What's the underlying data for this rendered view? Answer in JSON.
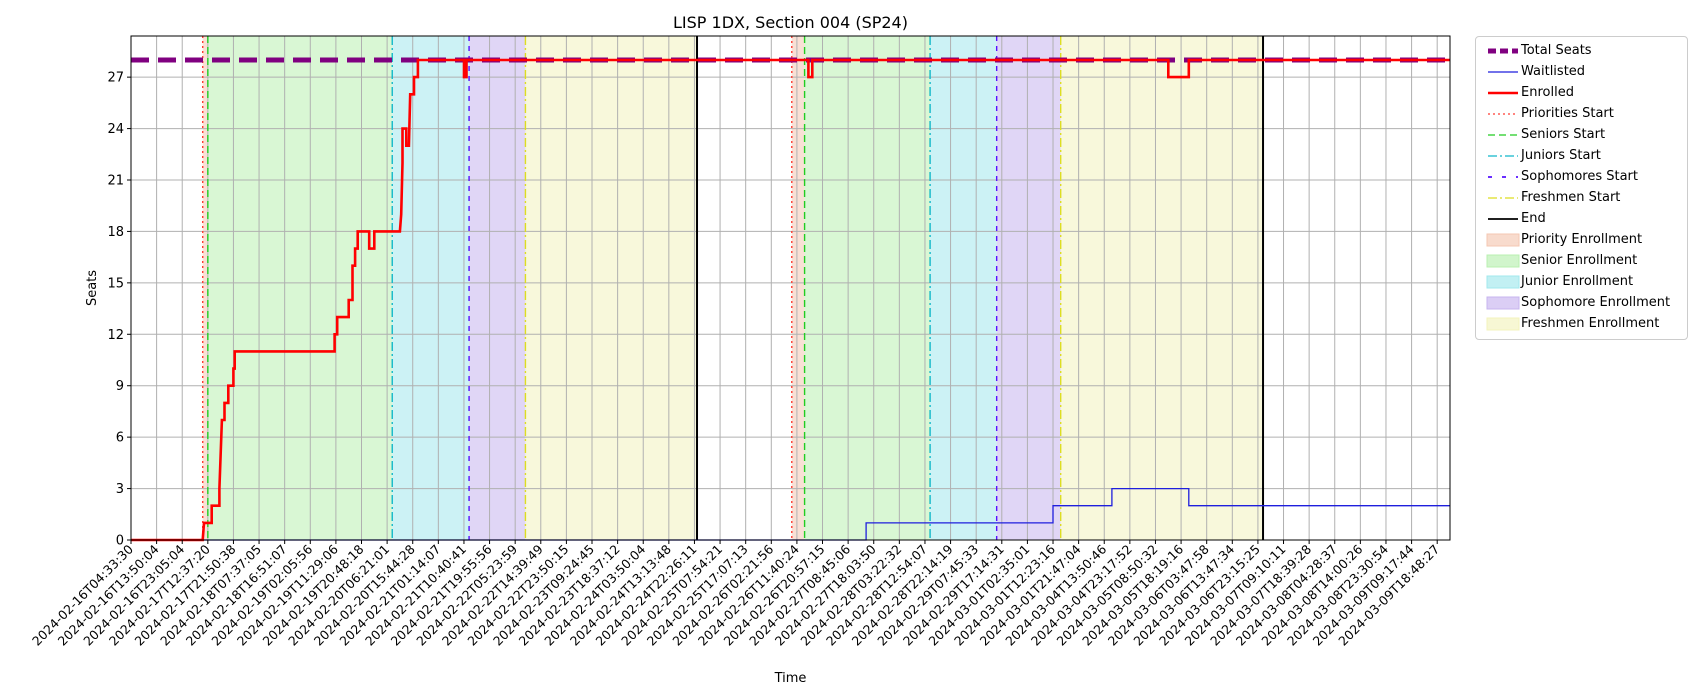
{
  "chart_data": {
    "type": "line",
    "title": "LISP 1DX, Section 004 (SP24)",
    "xlabel": "Time",
    "ylabel": "Seats",
    "ylim": [
      0,
      29.4
    ],
    "grid": true,
    "legend_position": "outside-right-top",
    "x_ticks": [
      "2024-02-16T04:33:30",
      "2024-02-16T13:50:04",
      "2024-02-16T23:05:04",
      "2024-02-17T12:37:20",
      "2024-02-17T21:50:38",
      "2024-02-18T07:37:05",
      "2024-02-18T16:51:07",
      "2024-02-19T02:05:56",
      "2024-02-19T11:29:06",
      "2024-02-19T20:48:18",
      "2024-02-20T06:21:01",
      "2024-02-20T15:44:28",
      "2024-02-21T01:14:07",
      "2024-02-21T10:40:41",
      "2024-02-21T19:55:56",
      "2024-02-22T05:23:59",
      "2024-02-22T14:39:49",
      "2024-02-22T23:50:15",
      "2024-02-23T09:24:45",
      "2024-02-23T18:37:12",
      "2024-02-24T03:50:04",
      "2024-02-24T13:13:48",
      "2024-02-24T22:26:11",
      "2024-02-25T07:54:21",
      "2024-02-25T17:07:13",
      "2024-02-26T02:21:56",
      "2024-02-26T11:40:24",
      "2024-02-26T20:57:15",
      "2024-02-27T08:45:06",
      "2024-02-27T18:03:50",
      "2024-02-28T03:22:32",
      "2024-02-28T12:54:07",
      "2024-02-28T22:14:19",
      "2024-02-29T07:45:33",
      "2024-02-29T17:14:31",
      "2024-03-01T02:35:01",
      "2024-03-01T12:23:16",
      "2024-03-01T21:47:04",
      "2024-03-04T13:50:46",
      "2024-03-04T23:17:52",
      "2024-03-05T08:50:32",
      "2024-03-05T18:19:16",
      "2024-03-06T03:47:58",
      "2024-03-06T13:47:34",
      "2024-03-06T23:15:25",
      "2024-03-07T09:10:11",
      "2024-03-07T18:39:28",
      "2024-03-08T04:28:37",
      "2024-03-08T14:00:26",
      "2024-03-08T23:30:54",
      "2024-03-09T09:17:44",
      "2024-03-09T18:48:27"
    ],
    "y_ticks": [
      0,
      3,
      6,
      9,
      12,
      15,
      18,
      21,
      24,
      27
    ],
    "x_index_range": [
      0,
      51.5
    ],
    "regions": [
      {
        "name": "Priority Enrollment",
        "start": 2.8,
        "end": 3.0,
        "color": "#f4c7b2"
      },
      {
        "name": "Senior Enrollment",
        "start": 3.0,
        "end": 10.2,
        "color": "#b9f0b0"
      },
      {
        "name": "Junior Enrollment",
        "start": 10.2,
        "end": 13.2,
        "color": "#a2e8ec"
      },
      {
        "name": "Sophomore Enrollment",
        "start": 13.2,
        "end": 15.4,
        "color": "#c7b4ef"
      },
      {
        "name": "Freshmen Enrollment",
        "start": 15.4,
        "end": 22.1,
        "color": "#f3f3bd"
      },
      {
        "name": "Priority Enrollment",
        "start": 25.8,
        "end": 26.3,
        "color": "#f4c7b2"
      },
      {
        "name": "Senior Enrollment",
        "start": 26.3,
        "end": 31.2,
        "color": "#b9f0b0"
      },
      {
        "name": "Junior Enrollment",
        "start": 31.2,
        "end": 33.8,
        "color": "#a2e8ec"
      },
      {
        "name": "Sophomore Enrollment",
        "start": 33.8,
        "end": 36.3,
        "color": "#c7b4ef"
      },
      {
        "name": "Freshmen Enrollment",
        "start": 36.3,
        "end": 44.2,
        "color": "#f3f3bd"
      }
    ],
    "markers": [
      {
        "name": "Priorities Start",
        "x": 2.8,
        "color": "#ff3b30",
        "dash": "2,3"
      },
      {
        "name": "Seniors Start",
        "x": 3.0,
        "color": "#22cc22",
        "dash": "7,4"
      },
      {
        "name": "Juniors Start",
        "x": 10.2,
        "color": "#11b8c9",
        "dash": "9,3,2,3"
      },
      {
        "name": "Sophomores Start",
        "x": 13.2,
        "color": "#5511ff",
        "dash": "5,5"
      },
      {
        "name": "Freshmen Start",
        "x": 15.4,
        "color": "#dddd22",
        "dash": "9,3,2,3"
      },
      {
        "name": "End",
        "x": 22.1,
        "color": "#000000",
        "dash": ""
      },
      {
        "name": "Priorities Start",
        "x": 25.8,
        "color": "#ff3b30",
        "dash": "2,3"
      },
      {
        "name": "Seniors Start",
        "x": 26.3,
        "color": "#22cc22",
        "dash": "7,4"
      },
      {
        "name": "Juniors Start",
        "x": 31.2,
        "color": "#11b8c9",
        "dash": "9,3,2,3"
      },
      {
        "name": "Sophomores Start",
        "x": 33.8,
        "color": "#5511ff",
        "dash": "5,5"
      },
      {
        "name": "Freshmen Start",
        "x": 36.3,
        "color": "#dddd22",
        "dash": "9,3,2,3"
      },
      {
        "name": "End",
        "x": 44.2,
        "color": "#000000",
        "dash": ""
      }
    ],
    "series": [
      {
        "name": "Total Seats",
        "color": "#800080",
        "style": "dashed-thick",
        "x": [
          0,
          51.5
        ],
        "y": [
          28,
          28
        ]
      },
      {
        "name": "Waitlisted",
        "color": "#1f1fdd",
        "style": "solid-thin",
        "x": [
          0,
          28.7,
          28.7,
          36.0,
          36.0,
          38.3,
          38.3,
          41.3,
          41.3,
          51.5
        ],
        "y": [
          0,
          0,
          1,
          1,
          2,
          2,
          3,
          3,
          2,
          2
        ]
      },
      {
        "name": "Enrolled",
        "color": "#ff0000",
        "style": "solid-thick",
        "x": [
          0,
          2.8,
          2.85,
          3.15,
          3.15,
          3.45,
          3.45,
          3.55,
          3.6,
          3.65,
          3.65,
          3.8,
          3.8,
          4.0,
          4.0,
          4.05,
          4.05,
          7.95,
          7.95,
          8.05,
          8.05,
          8.5,
          8.5,
          8.65,
          8.65,
          8.75,
          8.75,
          8.85,
          8.85,
          9.3,
          9.3,
          9.5,
          9.5,
          10.5,
          10.55,
          10.6,
          10.6,
          10.75,
          10.75,
          10.85,
          10.9,
          11.05,
          11.05,
          11.2,
          11.2,
          11.35,
          11.35,
          13.0,
          13.0,
          13.1,
          13.1,
          25.8,
          25.85,
          26.45,
          26.45,
          26.6,
          26.6,
          40.5,
          40.5,
          41.3,
          41.3,
          51.5
        ],
        "y": [
          0,
          0,
          1,
          1,
          2,
          2,
          3,
          7,
          7,
          7,
          8,
          8,
          9,
          9,
          10,
          10,
          11,
          11,
          12,
          12,
          13,
          13,
          14,
          14,
          16,
          16,
          17,
          17,
          18,
          18,
          17,
          17,
          18,
          18,
          19,
          22,
          24,
          24,
          23,
          23,
          26,
          26,
          27,
          27,
          28,
          28,
          28,
          28,
          27,
          27,
          28,
          28,
          28,
          28,
          27,
          27,
          28,
          28,
          27,
          27,
          28,
          28
        ]
      }
    ]
  },
  "legend": {
    "items": [
      {
        "label": "Total Seats",
        "kind": "line",
        "color": "#800080",
        "dash": "8,4",
        "width": 5
      },
      {
        "label": "Waitlisted",
        "kind": "line",
        "color": "#1f1fdd",
        "dash": "",
        "width": 1.3
      },
      {
        "label": "Enrolled",
        "kind": "line",
        "color": "#ff0000",
        "dash": "",
        "width": 2.5
      },
      {
        "label": "Priorities Start",
        "kind": "line",
        "color": "#ff3b30",
        "dash": "2,3",
        "width": 1.3
      },
      {
        "label": "Seniors Start",
        "kind": "line",
        "color": "#22cc22",
        "dash": "7,4",
        "width": 1.3
      },
      {
        "label": "Juniors Start",
        "kind": "line",
        "color": "#11b8c9",
        "dash": "9,3,2,3",
        "width": 1.3
      },
      {
        "label": "Sophomores Start",
        "kind": "line",
        "color": "#5511ff",
        "dash": "4,10",
        "width": 1.8
      },
      {
        "label": "Freshmen Start",
        "kind": "line",
        "color": "#dddd22",
        "dash": "9,3,2,3",
        "width": 1.3
      },
      {
        "label": "End",
        "kind": "line",
        "color": "#000000",
        "dash": "",
        "width": 1.8
      },
      {
        "label": "Priority Enrollment",
        "kind": "patch",
        "color": "#f4c7b2"
      },
      {
        "label": "Senior Enrollment",
        "kind": "patch",
        "color": "#b9f0b0"
      },
      {
        "label": "Junior Enrollment",
        "kind": "patch",
        "color": "#a2e8ec"
      },
      {
        "label": "Sophomore Enrollment",
        "kind": "patch",
        "color": "#c7b4ef"
      },
      {
        "label": "Freshmen Enrollment",
        "kind": "patch",
        "color": "#f3f3bd"
      }
    ]
  }
}
